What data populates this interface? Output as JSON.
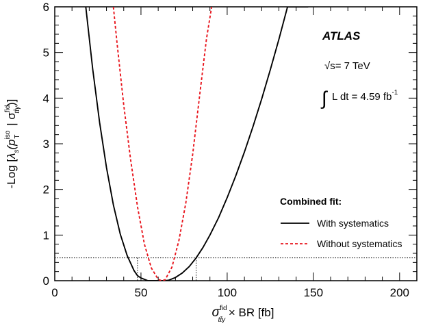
{
  "chart_data": {
    "type": "line",
    "xlim": [
      0,
      210
    ],
    "ylim": [
      0,
      6
    ],
    "x_ticks": [
      0,
      50,
      100,
      150,
      200
    ],
    "y_ticks": [
      0,
      1,
      2,
      3,
      4,
      5,
      6
    ],
    "xlabel": {
      "symbol": "σ",
      "sup": "fid",
      "sub": "tt̄γ",
      "rest": " × BR [fb]"
    },
    "ylabel": {
      "prefix": "-Log [",
      "lambda": "λ",
      "lambda_sub": "s",
      "p": "(p",
      "p_sup": "iso",
      "p_sub": "T",
      "sep": " | σ",
      "sigma_sup": "fid",
      "sigma_sub": "tt̄γ",
      "suffix": ")]"
    },
    "annotations": {
      "atlas": "ATLAS",
      "energy": "√s= 7 TeV",
      "integral": "∫",
      "lumi": "L dt = 4.59 fb",
      "lumi_sup": "-1"
    },
    "legend": {
      "title": "Combined fit:",
      "position": "right"
    },
    "series": [
      {
        "name": "With systematics",
        "color": "#000000",
        "style": "solid",
        "x": [
          18,
          22,
          26,
          30,
          34,
          38,
          42,
          46,
          48,
          50,
          54,
          58,
          62,
          64,
          66,
          70,
          74,
          78,
          82,
          86,
          90,
          95,
          100,
          105,
          110,
          115,
          120,
          125,
          130,
          135,
          140,
          145,
          147
        ],
        "y": [
          6.0,
          4.64,
          3.47,
          2.48,
          1.66,
          1.02,
          0.55,
          0.22,
          0.11,
          0.06,
          0.0,
          0.0,
          0.0,
          0.0,
          0.01,
          0.07,
          0.17,
          0.31,
          0.5,
          0.73,
          1.0,
          1.38,
          1.82,
          2.3,
          2.82,
          3.38,
          3.98,
          4.62,
          5.29,
          6.0,
          6.0,
          6.0,
          6.0
        ]
      },
      {
        "name": "Without systematics",
        "color": "#e8141c",
        "style": "dashed",
        "x": [
          34,
          36,
          40,
          44,
          48,
          52,
          56,
          60,
          62,
          64,
          68,
          72,
          76,
          80,
          84,
          88,
          91
        ],
        "y": [
          6.0,
          5.25,
          3.85,
          2.65,
          1.62,
          0.8,
          0.28,
          0.03,
          0.0,
          0.02,
          0.3,
          0.88,
          1.7,
          2.77,
          4.05,
          5.3,
          6.0
        ]
      }
    ],
    "reference_line": {
      "y": 0.5,
      "x_low": 48,
      "x_high": 82,
      "color": "#000000",
      "style": "dotted"
    }
  }
}
